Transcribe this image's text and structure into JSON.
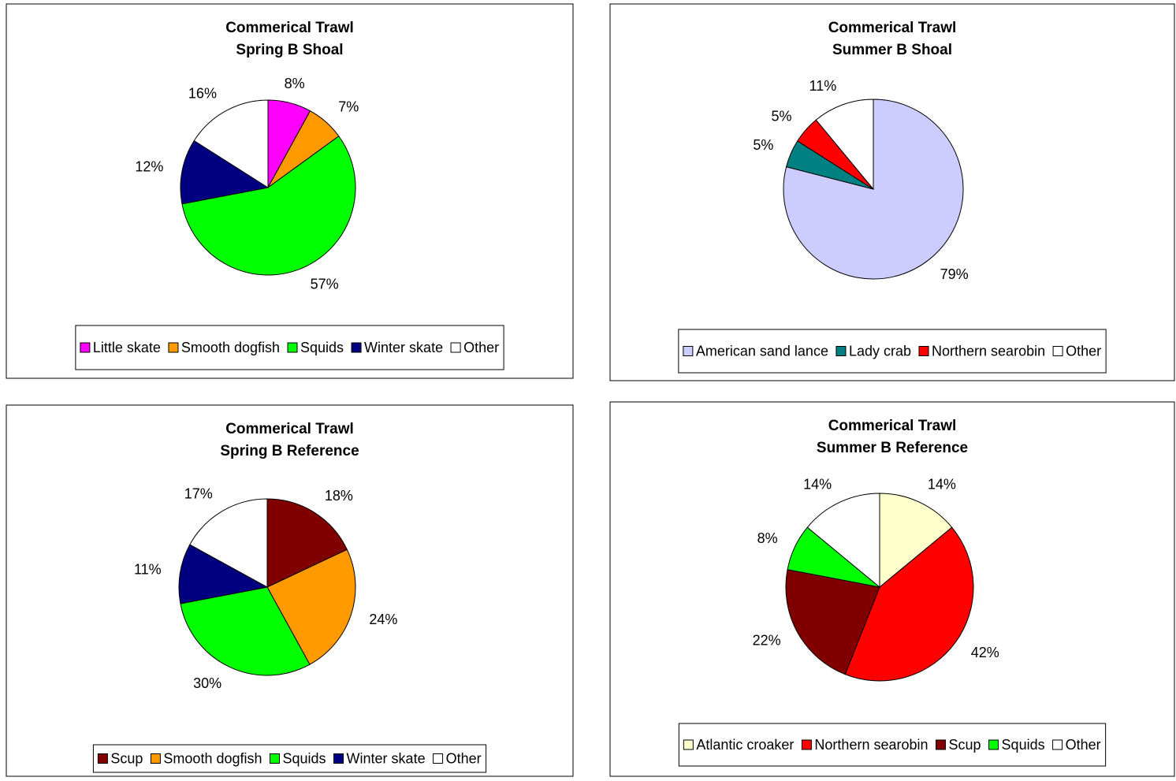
{
  "chart_data": [
    {
      "type": "pie",
      "title": "Commerical Trawl",
      "subtitle": "Spring B Shoal",
      "categories": [
        "Little skate",
        "Smooth dogfish",
        "Squids",
        "Winter skate",
        "Other"
      ],
      "values": [
        8,
        7,
        57,
        12,
        16
      ],
      "value_labels": [
        "8%",
        "7%",
        "57%",
        "12%",
        "16%"
      ],
      "colors": [
        "#ff00ff",
        "#ff9900",
        "#00ff00",
        "#000080",
        "#ffffff"
      ],
      "legend": "bottom"
    },
    {
      "type": "pie",
      "title": "Commerical Trawl",
      "subtitle": "Summer B Shoal",
      "categories": [
        "American sand lance",
        "Lady crab",
        "Northern searobin",
        "Other"
      ],
      "values": [
        79,
        5,
        5,
        11
      ],
      "value_labels": [
        "79%",
        "5%",
        "5%",
        "11%"
      ],
      "colors": [
        "#ccccff",
        "#008080",
        "#ff0000",
        "#ffffff"
      ],
      "legend": "bottom"
    },
    {
      "type": "pie",
      "title": "Commerical Trawl",
      "subtitle": "Spring B Reference",
      "categories": [
        "Scup",
        "Smooth dogfish",
        "Squids",
        "Winter skate",
        "Other"
      ],
      "values": [
        18,
        24,
        30,
        11,
        17
      ],
      "value_labels": [
        "18%",
        "24%",
        "30%",
        "11%",
        "17%"
      ],
      "colors": [
        "#800000",
        "#ff9900",
        "#00ff00",
        "#000080",
        "#ffffff"
      ],
      "legend": "bottom"
    },
    {
      "type": "pie",
      "title": "Commerical Trawl",
      "subtitle": "Summer B Reference",
      "categories": [
        "Atlantic croaker",
        "Northern searobin",
        "Scup",
        "Squids",
        "Other"
      ],
      "values": [
        14,
        42,
        22,
        8,
        14
      ],
      "value_labels": [
        "14%",
        "42%",
        "22%",
        "8%",
        "14%"
      ],
      "colors": [
        "#ffffcc",
        "#ff0000",
        "#800000",
        "#00ff00",
        "#ffffff"
      ],
      "legend": "bottom"
    }
  ]
}
